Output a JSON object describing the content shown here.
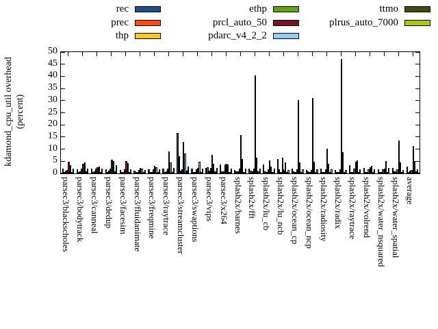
{
  "page": {
    "background": "#ffffff"
  },
  "chart_data": {
    "type": "bar",
    "title": "",
    "ylabel": "kdamond_cpu_util overhead (percent)",
    "ylabel_lines": [
      "kdamond_cpu_util overhead",
      "(percent)"
    ],
    "xlabel": "",
    "ylim": [
      0,
      50
    ],
    "ytick_step": 5,
    "ytick_labels": [
      "0",
      "5",
      "10",
      "15",
      "20",
      "25",
      "30",
      "35",
      "40",
      "45",
      "50"
    ],
    "grid": false,
    "legend_position": "top-center-3-columns",
    "legend_columns": [
      [
        "rec",
        "prec",
        "thp"
      ],
      [
        "ethp",
        "prcl_auto_50",
        "pdarc_v4_2_2"
      ],
      [
        "ttmo",
        "plrus_auto_7000"
      ]
    ],
    "categories": [
      "parsec3/blackscholes",
      "parsec3/bodytrack",
      "parsec3/canneal",
      "parsec3/dedup",
      "parsec3/facesim",
      "parsec3/fluidanimate",
      "parsec3/freqmine",
      "parsec3/raytrace",
      "parsec3/streamcluster",
      "parsec3/swaptions",
      "parsec3/vips",
      "parsec3/x264",
      "splash2x/barnes",
      "splash2x/fft",
      "splash2x/lu_cb",
      "splash2x/lu_ncb",
      "splash2x/ocean_cp",
      "splash2x/ocean_ncp",
      "splash2x/radiosity",
      "splash2x/radix",
      "splash2x/raytrace",
      "splash2x/volrend",
      "splash2x/water_nsquared",
      "splash2x/water_spatial",
      "average"
    ],
    "series": [
      {
        "name": "rec",
        "color": "#1d4e8f",
        "values": [
          2.0,
          1.6,
          2.1,
          1.8,
          1.5,
          1.2,
          1.6,
          1.9,
          16.7,
          2.0,
          2.4,
          3.8,
          1.5,
          2.0,
          3.6,
          6.0,
          2.0,
          1.5,
          2.1,
          1.5,
          3.5,
          2.2,
          1.8,
          2.4,
          2.7
        ]
      },
      {
        "name": "prec",
        "color": "#f85014",
        "values": [
          0.7,
          0.7,
          0.6,
          0.6,
          0.5,
          0.5,
          0.6,
          0.7,
          7.2,
          0.6,
          2.6,
          0.8,
          0.8,
          1.0,
          0.8,
          1.6,
          0.8,
          0.8,
          0.7,
          0.5,
          0.7,
          0.6,
          0.6,
          0.8,
          0.6
        ]
      },
      {
        "name": "thp",
        "color": "#fcc52a",
        "values": [
          1.0,
          0.9,
          0.8,
          1.1,
          0.7,
          0.6,
          0.7,
          0.8,
          1.0,
          0.5,
          1.0,
          0.9,
          0.8,
          0.8,
          0.6,
          0.5,
          0.5,
          0.5,
          0.5,
          0.4,
          0.4,
          0.4,
          0.5,
          0.8,
          1.0
        ]
      },
      {
        "name": "ethp",
        "color": "#63a411",
        "values": [
          1.5,
          2.0,
          1.9,
          2.0,
          1.6,
          1.4,
          1.8,
          1.9,
          1.6,
          1.6,
          2.4,
          3.6,
          2.0,
          2.1,
          1.8,
          6.4,
          1.8,
          1.5,
          1.8,
          1.7,
          2.0,
          1.8,
          1.8,
          1.7,
          1.5
        ]
      },
      {
        "name": "prcl_auto_50",
        "color": "#7a1228",
        "values": [
          4.9,
          4.1,
          2.6,
          5.6,
          5.0,
          2.4,
          3.0,
          9.0,
          13.1,
          2.2,
          7.5,
          4.0,
          15.8,
          40.4,
          5.4,
          1.0,
          30.2,
          31.1,
          10.2,
          47.2,
          4.8,
          2.5,
          2.0,
          13.7,
          11.2
        ]
      },
      {
        "name": "pdarc_v4_2_2",
        "color": "#92cdf0",
        "values": [
          3.4,
          4.5,
          2.9,
          5.0,
          4.3,
          2.0,
          2.6,
          4.5,
          8.3,
          4.7,
          4.0,
          3.6,
          5.9,
          6.4,
          2.8,
          4.6,
          4.5,
          4.9,
          3.9,
          8.8,
          5.4,
          3.0,
          5.2,
          4.5,
          5.0
        ]
      },
      {
        "name": "ttmo",
        "color": "#3f4c0c",
        "values": [
          0.6,
          0.9,
          0.7,
          0.8,
          0.6,
          0.5,
          0.6,
          0.7,
          1.2,
          0.6,
          0.8,
          0.5,
          0.7,
          0.9,
          0.5,
          0.6,
          0.7,
          0.7,
          0.6,
          0.6,
          0.6,
          0.6,
          0.7,
          0.6,
          0.8
        ]
      },
      {
        "name": "plrus_auto_7000",
        "color": "#a6c815",
        "values": [
          2.1,
          2.1,
          2.0,
          3.4,
          1.8,
          1.4,
          1.7,
          2.2,
          2.8,
          2.0,
          2.2,
          2.1,
          2.0,
          2.1,
          1.9,
          1.5,
          1.7,
          1.6,
          1.6,
          1.5,
          1.6,
          1.6,
          2.4,
          1.5,
          1.7
        ]
      }
    ]
  }
}
